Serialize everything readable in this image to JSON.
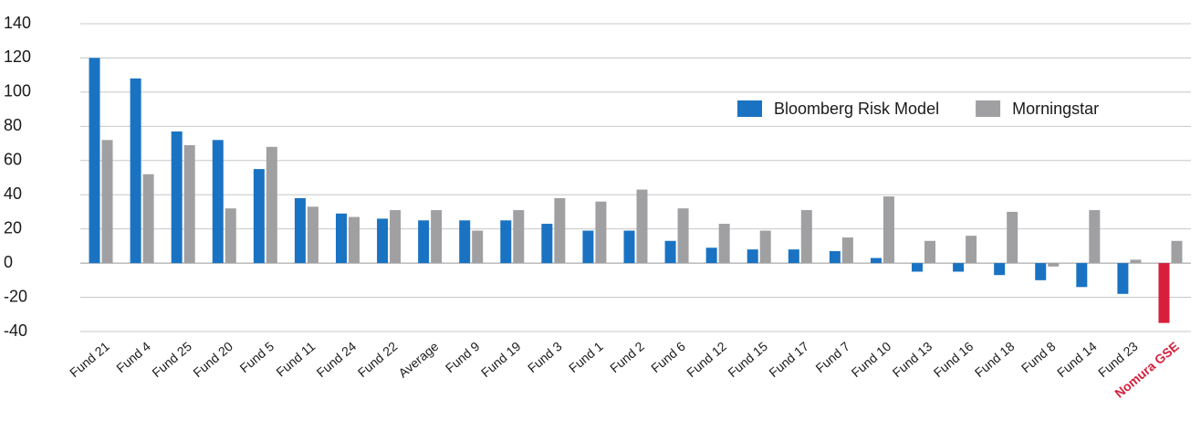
{
  "chart_data": {
    "type": "bar",
    "categories": [
      "Fund 21",
      "Fund 4",
      "Fund 25",
      "Fund 20",
      "Fund 5",
      "Fund 11",
      "Fund 24",
      "Fund 22",
      "Average",
      "Fund 9",
      "Fund 19",
      "Fund 3",
      "Fund 1",
      "Fund 2",
      "Fund 6",
      "Fund 12",
      "Fund 15",
      "Fund 17",
      "Fund 7",
      "Fund 10",
      "Fund 13",
      "Fund 16",
      "Fund 18",
      "Fund 8",
      "Fund 14",
      "Fund 23",
      "Nomura GSE"
    ],
    "series": [
      {
        "name": "Bloomberg Risk Model",
        "color": "#1a73c2",
        "colors": [
          "#1a73c2",
          "#1a73c2",
          "#1a73c2",
          "#1a73c2",
          "#1a73c2",
          "#1a73c2",
          "#1a73c2",
          "#1a73c2",
          "#1a73c2",
          "#1a73c2",
          "#1a73c2",
          "#1a73c2",
          "#1a73c2",
          "#1a73c2",
          "#1a73c2",
          "#1a73c2",
          "#1a73c2",
          "#1a73c2",
          "#1a73c2",
          "#1a73c2",
          "#1a73c2",
          "#1a73c2",
          "#1a73c2",
          "#1a73c2",
          "#1a73c2",
          "#1a73c2",
          "#d71f3c"
        ],
        "values": [
          120,
          108,
          77,
          72,
          55,
          38,
          29,
          26,
          25,
          25,
          25,
          23,
          19,
          19,
          13,
          9,
          8,
          8,
          7,
          3,
          -5,
          -5,
          -7,
          -10,
          -14,
          -18,
          -35
        ]
      },
      {
        "name": "Morningstar",
        "color": "#a0a0a2",
        "values": [
          72,
          52,
          69,
          32,
          68,
          33,
          27,
          31,
          31,
          19,
          31,
          38,
          36,
          43,
          32,
          23,
          19,
          31,
          15,
          39,
          13,
          16,
          30,
          -2,
          31,
          2,
          13
        ]
      }
    ],
    "ylim": [
      -40,
      140
    ],
    "yticks": [
      -40,
      -20,
      0,
      20,
      40,
      60,
      80,
      100,
      120,
      140
    ],
    "grid": true,
    "legend": "top-right"
  }
}
